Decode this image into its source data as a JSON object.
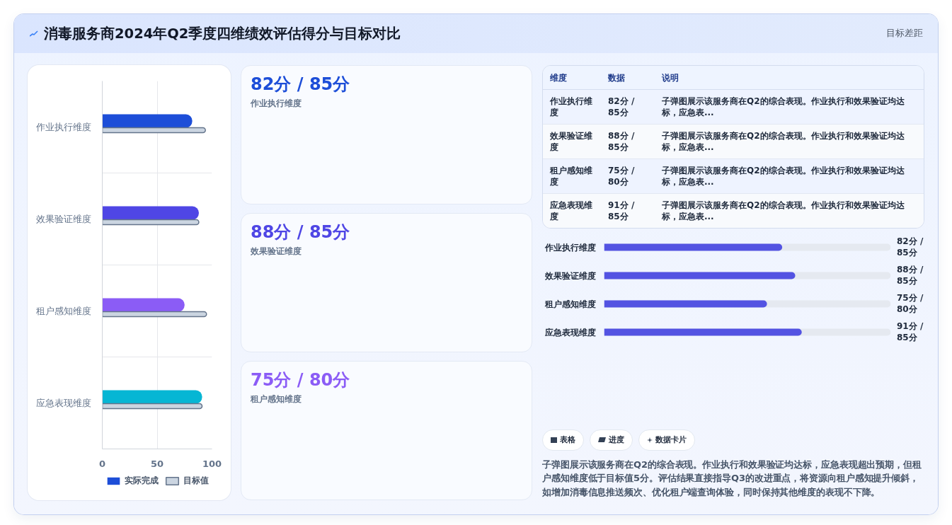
{
  "chart_data": [
    {
      "type": "bar",
      "title": "消毒服务商2024年Q2季度四维绩效评估得分与目标对比",
      "annotations": [
        "目标差距"
      ],
      "orientation": "horizontal",
      "categories": [
        "作业执行维度",
        "效果验证维度",
        "租户感知维度",
        "应急表现维度"
      ],
      "series": [
        {
          "name": "实际完成",
          "colors": [
            "#1d4ed8",
            "#4f46e5",
            "#8b5cf6",
            "#06b6d4"
          ],
          "values": [
            82,
            88,
            75,
            91
          ]
        },
        {
          "name": "目标值",
          "color": "#cbd5e1",
          "values": [
            94,
            88,
            95,
            91
          ]
        }
      ],
      "xlim": [
        0,
        100
      ],
      "xticks": [
        0,
        50,
        100
      ],
      "grid": true,
      "legend": "bottom"
    },
    {
      "type": "other",
      "title": "82分 / 85分",
      "subtitle": "作业执行维度"
    },
    {
      "type": "other",
      "title": "88分 / 85分",
      "subtitle": "效果验证维度"
    },
    {
      "type": "other",
      "title": "75分 / 80分",
      "subtitle": "租户感知维度"
    },
    {
      "type": "other",
      "categories": [
        "维度",
        "数据",
        "说明"
      ],
      "y_categories": [
        "作业执行维度",
        "效果验证维度",
        "租户感知维度",
        "应急表现维度"
      ],
      "cell_labels": [
        [
          "82分 / 85分",
          "子弹图展示该服务商在Q2的综合表现。作业执行和效果验证均达标，应急表..."
        ],
        [
          "88分 / 85分",
          "子弹图展示该服务商在Q2的综合表现。作业执行和效果验证均达标，应急表..."
        ],
        [
          "75分 / 80分",
          "子弹图展示该服务商在Q2的综合表现。作业执行和效果验证均达标，应急表..."
        ],
        [
          "91分 / 85分",
          "子弹图展示该服务商在Q2的综合表现。作业执行和效果验证均达标，应急表..."
        ]
      ]
    },
    {
      "type": "bar",
      "orientation": "horizontal",
      "categories": [
        "作业执行维度",
        "效果验证维度",
        "租户感知维度",
        "应急表现维度"
      ],
      "series": [
        {
          "color": "#5353e2",
          "values": [
            82,
            88,
            75,
            91
          ],
          "value_labels": [
            "82分 / 85分",
            "88分 / 85分",
            "75分 / 80分",
            "91分 / 85分"
          ]
        }
      ],
      "xlim": [
        0,
        132
      ],
      "tick_labels": "y"
    },
    {
      "type": "other",
      "categories": [
        "表格",
        "进度",
        "数据卡片"
      ],
      "annotations": [
        "子弹图展示该服务商在Q2的综合表现。作业执行和效果验证均达标，应急表现超出预期，但租户感知维度低于目标值5分。评估结果直接指导Q3的改进重点，将资源向租户感知提升倾斜，如增加消毒信息推送频次、优化租户端查询体验，同时保持其他维度的表现不下降。"
      ]
    }
  ]
}
